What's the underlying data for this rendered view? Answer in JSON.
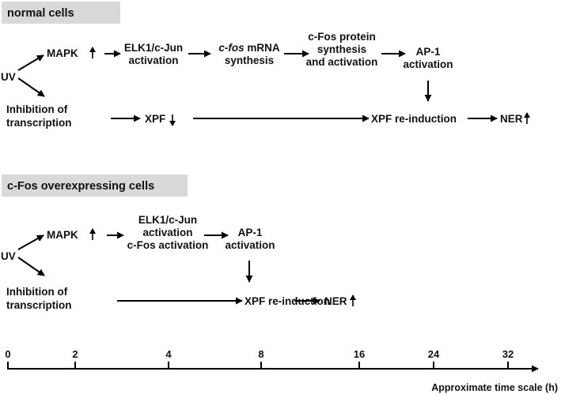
{
  "normal": {
    "header": "normal cells",
    "uv": "UV",
    "mapk": "MAPK",
    "elk1_l1": "ELK1/c-Jun",
    "elk1_l2": "activation",
    "cfos_italic": "c-fos",
    "cfos_rest": " mRNA",
    "cfos_l2": "synthesis",
    "prot_l1": "c-Fos protein",
    "prot_l2": "synthesis",
    "prot_l3": "and activation",
    "ap1_l1": "AP-1",
    "ap1_l2": "activation",
    "inhib_l1": "Inhibition of",
    "inhib_l2": "transcription",
    "xpf": "XPF",
    "xpf_re": "XPF re-induction",
    "ner": "NER"
  },
  "overexpress": {
    "header": "c-Fos overexpressing cells",
    "uv": "UV",
    "mapk": "MAPK",
    "elk1_l1": "ELK1/c-Jun",
    "elk1_l2": "activation",
    "elk1_l3": "c-Fos activation",
    "ap1_l1": "AP-1",
    "ap1_l2": "activation",
    "inhib_l1": "Inhibition of",
    "inhib_l2": "transcription",
    "xpf_re": "XPF re-induction",
    "ner": "NER"
  },
  "timescale": {
    "ticks": [
      "0",
      "2",
      "4",
      "8",
      "16",
      "24",
      "32"
    ],
    "title": "Approximate time scale (h)"
  }
}
